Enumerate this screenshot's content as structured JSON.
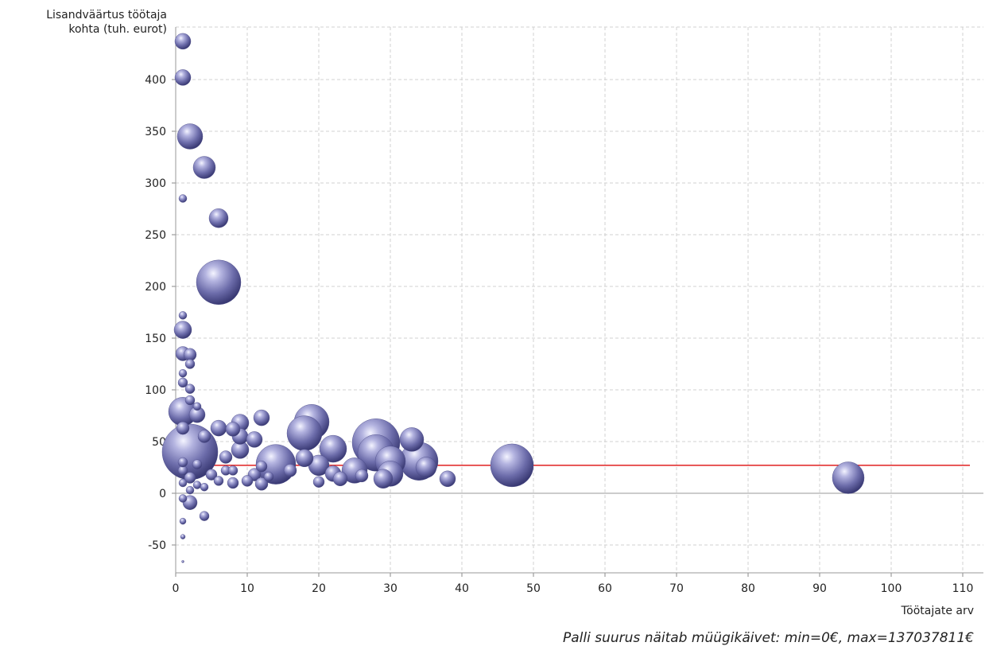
{
  "chart_data": {
    "type": "scatter",
    "bubble": true,
    "ylabel_lines": [
      "Lisandväärtus töötaja",
      "kohta (tuh. eurot)"
    ],
    "xlabel": "Töötajate arv",
    "footnote": "Palli suurus näitab müügikäivet: min=0€, max=137037811€",
    "xlim": [
      0,
      113
    ],
    "ylim": [
      -78,
      450
    ],
    "xticks": [
      0,
      10,
      20,
      30,
      40,
      50,
      60,
      70,
      80,
      90,
      100,
      110
    ],
    "yticks": [
      -50,
      0,
      50,
      100,
      150,
      200,
      250,
      300,
      350,
      400
    ],
    "grid": true,
    "bubble_color": "#7b7bb5",
    "reference_line": {
      "y": 27,
      "x_from": 2,
      "x_to": 111,
      "color": "#e02020"
    },
    "points": [
      {
        "x": 1,
        "y": 437,
        "s": 10
      },
      {
        "x": 1,
        "y": 402,
        "s": 10
      },
      {
        "x": 2,
        "y": 345,
        "s": 16
      },
      {
        "x": 4,
        "y": 315,
        "s": 14
      },
      {
        "x": 1,
        "y": 285,
        "s": 5
      },
      {
        "x": 6,
        "y": 266,
        "s": 12
      },
      {
        "x": 6,
        "y": 204,
        "s": 28
      },
      {
        "x": 1,
        "y": 172,
        "s": 5
      },
      {
        "x": 1,
        "y": 158,
        "s": 11
      },
      {
        "x": 1,
        "y": 135,
        "s": 9
      },
      {
        "x": 2,
        "y": 134,
        "s": 8
      },
      {
        "x": 2,
        "y": 125,
        "s": 6
      },
      {
        "x": 1,
        "y": 116,
        "s": 5
      },
      {
        "x": 1,
        "y": 107,
        "s": 6
      },
      {
        "x": 2,
        "y": 101,
        "s": 6
      },
      {
        "x": 2,
        "y": 90,
        "s": 6
      },
      {
        "x": 1,
        "y": 79,
        "s": 18
      },
      {
        "x": 3,
        "y": 76,
        "s": 10
      },
      {
        "x": 3,
        "y": 84,
        "s": 5
      },
      {
        "x": 2,
        "y": 40,
        "s": 35
      },
      {
        "x": 1,
        "y": 63,
        "s": 8
      },
      {
        "x": 6,
        "y": 63,
        "s": 10
      },
      {
        "x": 8,
        "y": 62,
        "s": 9
      },
      {
        "x": 9,
        "y": 68,
        "s": 11
      },
      {
        "x": 12,
        "y": 73,
        "s": 10
      },
      {
        "x": 9,
        "y": 55,
        "s": 10
      },
      {
        "x": 11,
        "y": 52,
        "s": 10
      },
      {
        "x": 9,
        "y": 42,
        "s": 11
      },
      {
        "x": 14,
        "y": 28,
        "s": 25
      },
      {
        "x": 19,
        "y": 69,
        "s": 22
      },
      {
        "x": 18,
        "y": 58,
        "s": 22
      },
      {
        "x": 18,
        "y": 34,
        "s": 11
      },
      {
        "x": 22,
        "y": 43,
        "s": 17
      },
      {
        "x": 20,
        "y": 27,
        "s": 13
      },
      {
        "x": 22,
        "y": 19,
        "s": 10
      },
      {
        "x": 25,
        "y": 22,
        "s": 16
      },
      {
        "x": 28,
        "y": 49,
        "s": 30
      },
      {
        "x": 28,
        "y": 39,
        "s": 23
      },
      {
        "x": 30,
        "y": 31,
        "s": 19
      },
      {
        "x": 29,
        "y": 14,
        "s": 12
      },
      {
        "x": 30,
        "y": 19,
        "s": 16
      },
      {
        "x": 33,
        "y": 52,
        "s": 15
      },
      {
        "x": 34,
        "y": 31,
        "s": 24
      },
      {
        "x": 35,
        "y": 25,
        "s": 13
      },
      {
        "x": 38,
        "y": 14,
        "s": 10
      },
      {
        "x": 47,
        "y": 27,
        "s": 27
      },
      {
        "x": 94,
        "y": 15,
        "s": 20
      },
      {
        "x": 4,
        "y": -22,
        "s": 6
      },
      {
        "x": 2,
        "y": -9,
        "s": 9
      },
      {
        "x": 1,
        "y": -5,
        "s": 5
      },
      {
        "x": 1,
        "y": -27,
        "s": 4
      },
      {
        "x": 1,
        "y": -42,
        "s": 3
      },
      {
        "x": 1,
        "y": -66,
        "s": 1.5
      },
      {
        "x": 5,
        "y": 18,
        "s": 7
      },
      {
        "x": 6,
        "y": 12,
        "s": 6
      },
      {
        "x": 7,
        "y": 22,
        "s": 6
      },
      {
        "x": 8,
        "y": 10,
        "s": 7
      },
      {
        "x": 8,
        "y": 22,
        "s": 6
      },
      {
        "x": 10,
        "y": 12,
        "s": 7
      },
      {
        "x": 11,
        "y": 18,
        "s": 8
      },
      {
        "x": 12,
        "y": 9,
        "s": 8
      },
      {
        "x": 12,
        "y": 26,
        "s": 7
      },
      {
        "x": 13,
        "y": 16,
        "s": 6
      },
      {
        "x": 16,
        "y": 22,
        "s": 8
      },
      {
        "x": 20,
        "y": 11,
        "s": 7
      },
      {
        "x": 23,
        "y": 14,
        "s": 9
      },
      {
        "x": 26,
        "y": 17,
        "s": 8
      },
      {
        "x": 3,
        "y": 8,
        "s": 5
      },
      {
        "x": 4,
        "y": 6,
        "s": 5
      },
      {
        "x": 2,
        "y": 15,
        "s": 7
      },
      {
        "x": 1,
        "y": 22,
        "s": 6
      },
      {
        "x": 7,
        "y": 35,
        "s": 8
      },
      {
        "x": 4,
        "y": 55,
        "s": 8
      },
      {
        "x": 1,
        "y": 10,
        "s": 5
      },
      {
        "x": 1,
        "y": 30,
        "s": 6
      },
      {
        "x": 3,
        "y": 28,
        "s": 6
      },
      {
        "x": 2,
        "y": 3,
        "s": 5
      }
    ]
  }
}
